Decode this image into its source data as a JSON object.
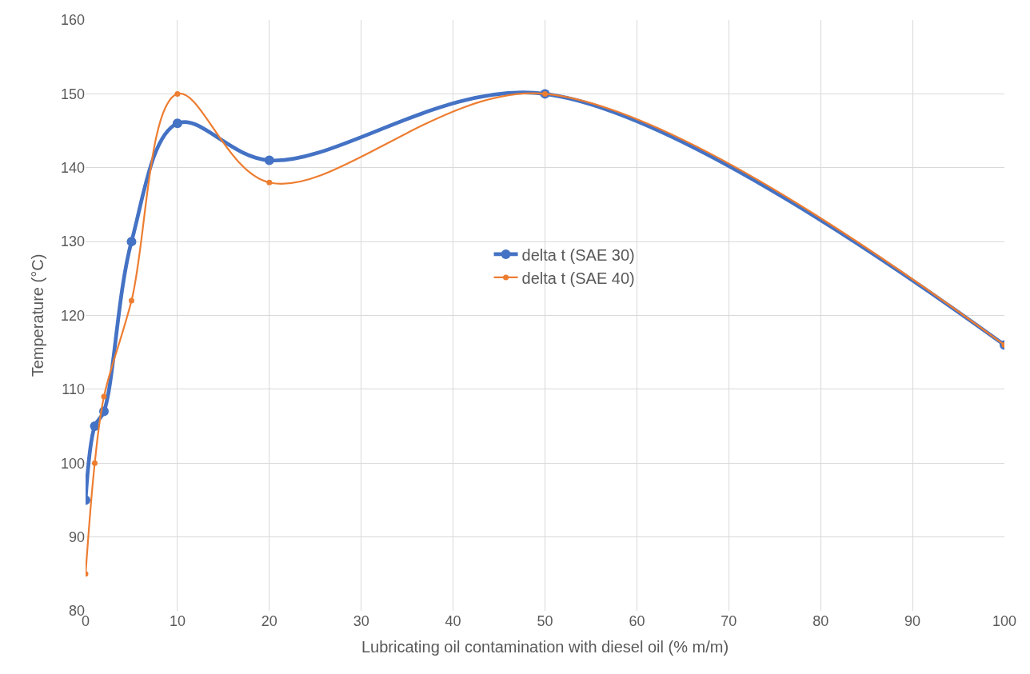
{
  "chart_data": {
    "type": "line",
    "xlabel": "Lubricating oil contamination with diesel oil (% m/m)",
    "ylabel": "Temperature (°C)",
    "x": [
      0,
      1,
      2,
      5,
      10,
      20,
      50,
      100
    ],
    "series": [
      {
        "name": "delta t (SAE 30)",
        "color": "#4472c4",
        "values": [
          95,
          105,
          107,
          130,
          146,
          141,
          150,
          116
        ]
      },
      {
        "name": "delta t (SAE 40)",
        "color": "#ed7d31",
        "values": [
          85,
          100,
          109,
          122,
          150,
          138,
          150,
          116
        ]
      }
    ],
    "xlim": [
      0,
      100
    ],
    "xticks": [
      0,
      10,
      20,
      30,
      40,
      50,
      60,
      70,
      80,
      90,
      100
    ],
    "ylim": [
      80,
      160
    ],
    "yticks": [
      80,
      90,
      100,
      110,
      120,
      130,
      140,
      150,
      160
    ],
    "grid": true,
    "legend": "center",
    "marker": "circle",
    "line_style": "solid"
  }
}
